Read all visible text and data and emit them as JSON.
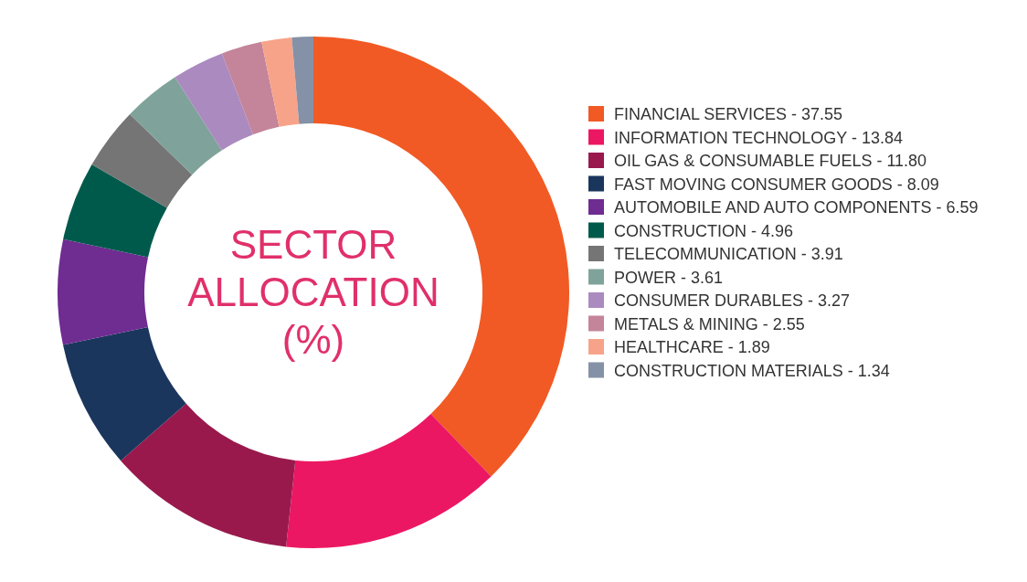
{
  "chart_data": {
    "type": "donut",
    "title": "SECTOR ALLOCATION (%)",
    "categories": [
      "FINANCIAL SERVICES",
      "INFORMATION TECHNOLOGY",
      "OIL GAS & CONSUMABLE FUELS",
      "FAST MOVING CONSUMER GOODS",
      "AUTOMOBILE AND AUTO COMPONENTS",
      "CONSTRUCTION",
      "TELECOMMUNICATION",
      "POWER",
      "CONSUMER DURABLES",
      "METALS & MINING",
      "HEALTHCARE",
      "CONSTRUCTION MATERIALS"
    ],
    "values": [
      37.55,
      13.84,
      11.8,
      8.09,
      6.59,
      4.96,
      3.91,
      3.61,
      3.27,
      2.55,
      1.89,
      1.34
    ],
    "value_labels": [
      "37.55",
      "13.84",
      "11.80",
      "8.09",
      "6.59",
      "4.96",
      "3.91",
      "3.61",
      "3.27",
      "2.55",
      "1.89",
      "1.34"
    ],
    "colors": [
      "#f15a24",
      "#ec1763",
      "#99194d",
      "#1b365d",
      "#6f2c91",
      "#005a4b",
      "#757575",
      "#7fa39a",
      "#ab8ac0",
      "#c4849a",
      "#f7a389",
      "#8591a6"
    ],
    "legend": "right"
  }
}
